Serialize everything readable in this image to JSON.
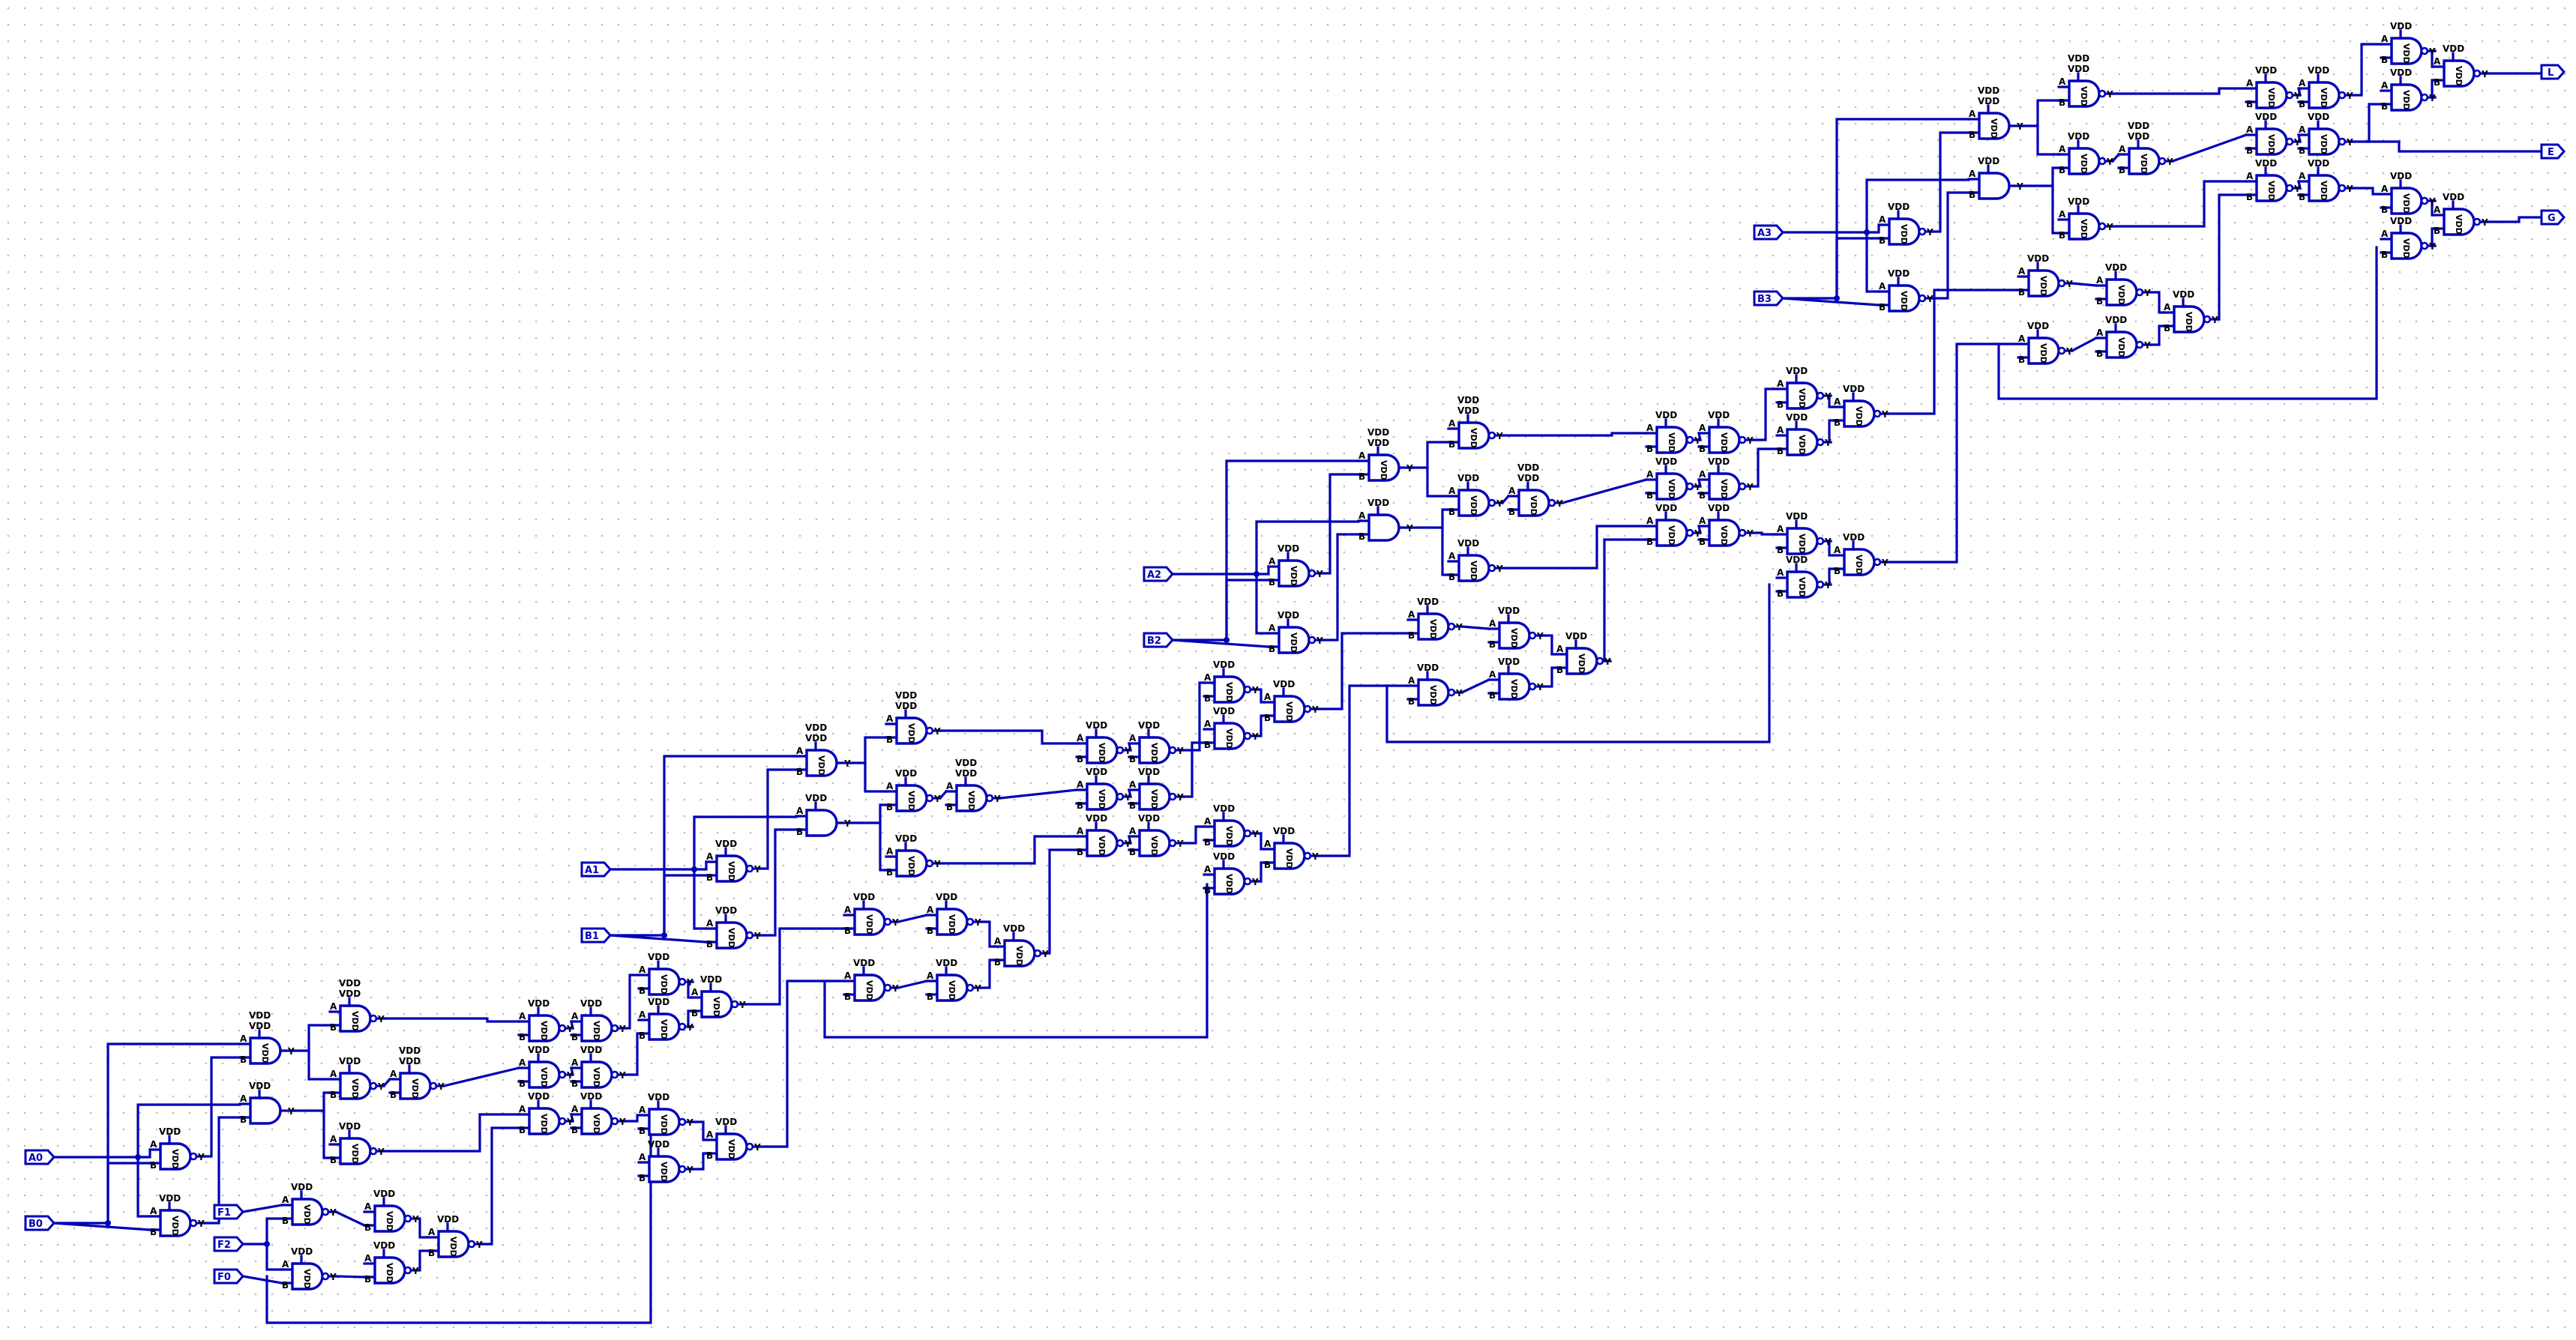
{
  "app": {
    "view": "logic schematic"
  },
  "labels": {
    "supply": "VDD",
    "supply_rot": "VDD",
    "pin_a": "A",
    "pin_b": "B",
    "pin_y": "Y"
  },
  "inputs": [
    "A0",
    "B0",
    "A1",
    "B1",
    "A2",
    "B2",
    "A3",
    "B3"
  ],
  "carry_ports": [
    "F1",
    "F2",
    "F0"
  ],
  "outputs": [
    "L",
    "E",
    "G"
  ],
  "colors": {
    "wire": "#0000b8",
    "label": "#000000",
    "grid_dot": "#b9bcc8",
    "background": "#ffffff"
  }
}
